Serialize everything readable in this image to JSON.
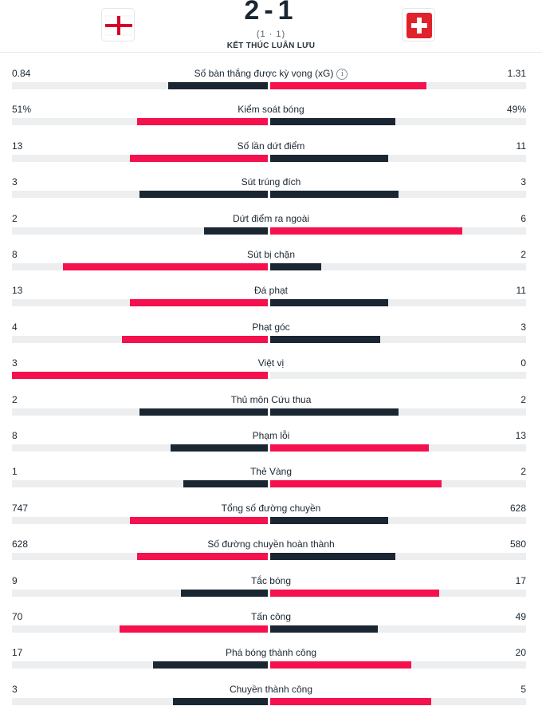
{
  "match": {
    "score": "2-1",
    "penalties": "(1 · 1)",
    "status": "KẾT THÚC LUÂN LƯU",
    "home_flag": "england-flag",
    "away_flag": "switzerland-flag"
  },
  "colors": {
    "highlight": "#f5114e",
    "dark": "#1a2632",
    "track": "#eceef0"
  },
  "stats": [
    {
      "label": "Số bàn thắng được kỳ vọng (xG)",
      "home": "0.84",
      "away": "1.31",
      "home_frac": 0.39,
      "away_frac": 0.61,
      "winner": "away",
      "info": true
    },
    {
      "label": "Kiểm soát bóng",
      "home": "51%",
      "away": "49%",
      "home_frac": 0.51,
      "away_frac": 0.49,
      "winner": "home"
    },
    {
      "label": "Số lần dứt điểm",
      "home": "13",
      "away": "11",
      "home_frac": 0.54,
      "away_frac": 0.46,
      "winner": "home"
    },
    {
      "label": "Sút trúng đích",
      "home": "3",
      "away": "3",
      "home_frac": 0.5,
      "away_frac": 0.5,
      "winner": "none"
    },
    {
      "label": "Dứt điểm ra ngoài",
      "home": "2",
      "away": "6",
      "home_frac": 0.25,
      "away_frac": 0.75,
      "winner": "away"
    },
    {
      "label": "Sút bị chặn",
      "home": "8",
      "away": "2",
      "home_frac": 0.8,
      "away_frac": 0.2,
      "winner": "home"
    },
    {
      "label": "Đá phạt",
      "home": "13",
      "away": "11",
      "home_frac": 0.54,
      "away_frac": 0.46,
      "winner": "home"
    },
    {
      "label": "Phạt góc",
      "home": "4",
      "away": "3",
      "home_frac": 0.57,
      "away_frac": 0.43,
      "winner": "home"
    },
    {
      "label": "Việt vị",
      "home": "3",
      "away": "0",
      "home_frac": 1.0,
      "away_frac": 0.0,
      "winner": "home"
    },
    {
      "label": "Thủ môn Cứu thua",
      "home": "2",
      "away": "2",
      "home_frac": 0.5,
      "away_frac": 0.5,
      "winner": "none"
    },
    {
      "label": "Phạm lỗi",
      "home": "8",
      "away": "13",
      "home_frac": 0.38,
      "away_frac": 0.62,
      "winner": "away"
    },
    {
      "label": "Thẻ Vàng",
      "home": "1",
      "away": "2",
      "home_frac": 0.33,
      "away_frac": 0.67,
      "winner": "away"
    },
    {
      "label": "Tổng số đường chuyền",
      "home": "747",
      "away": "628",
      "home_frac": 0.54,
      "away_frac": 0.46,
      "winner": "home"
    },
    {
      "label": "Số đường chuyền hoàn thành",
      "home": "628",
      "away": "580",
      "home_frac": 0.51,
      "away_frac": 0.49,
      "winner": "home"
    },
    {
      "label": "Tắc bóng",
      "home": "9",
      "away": "17",
      "home_frac": 0.34,
      "away_frac": 0.66,
      "winner": "away"
    },
    {
      "label": "Tấn công",
      "home": "70",
      "away": "49",
      "home_frac": 0.58,
      "away_frac": 0.42,
      "winner": "home"
    },
    {
      "label": "Phá bóng thành công",
      "home": "17",
      "away": "20",
      "home_frac": 0.45,
      "away_frac": 0.55,
      "winner": "away"
    },
    {
      "label": "Chuyền thành công",
      "home": "3",
      "away": "5",
      "home_frac": 0.37,
      "away_frac": 0.63,
      "winner": "away"
    }
  ]
}
